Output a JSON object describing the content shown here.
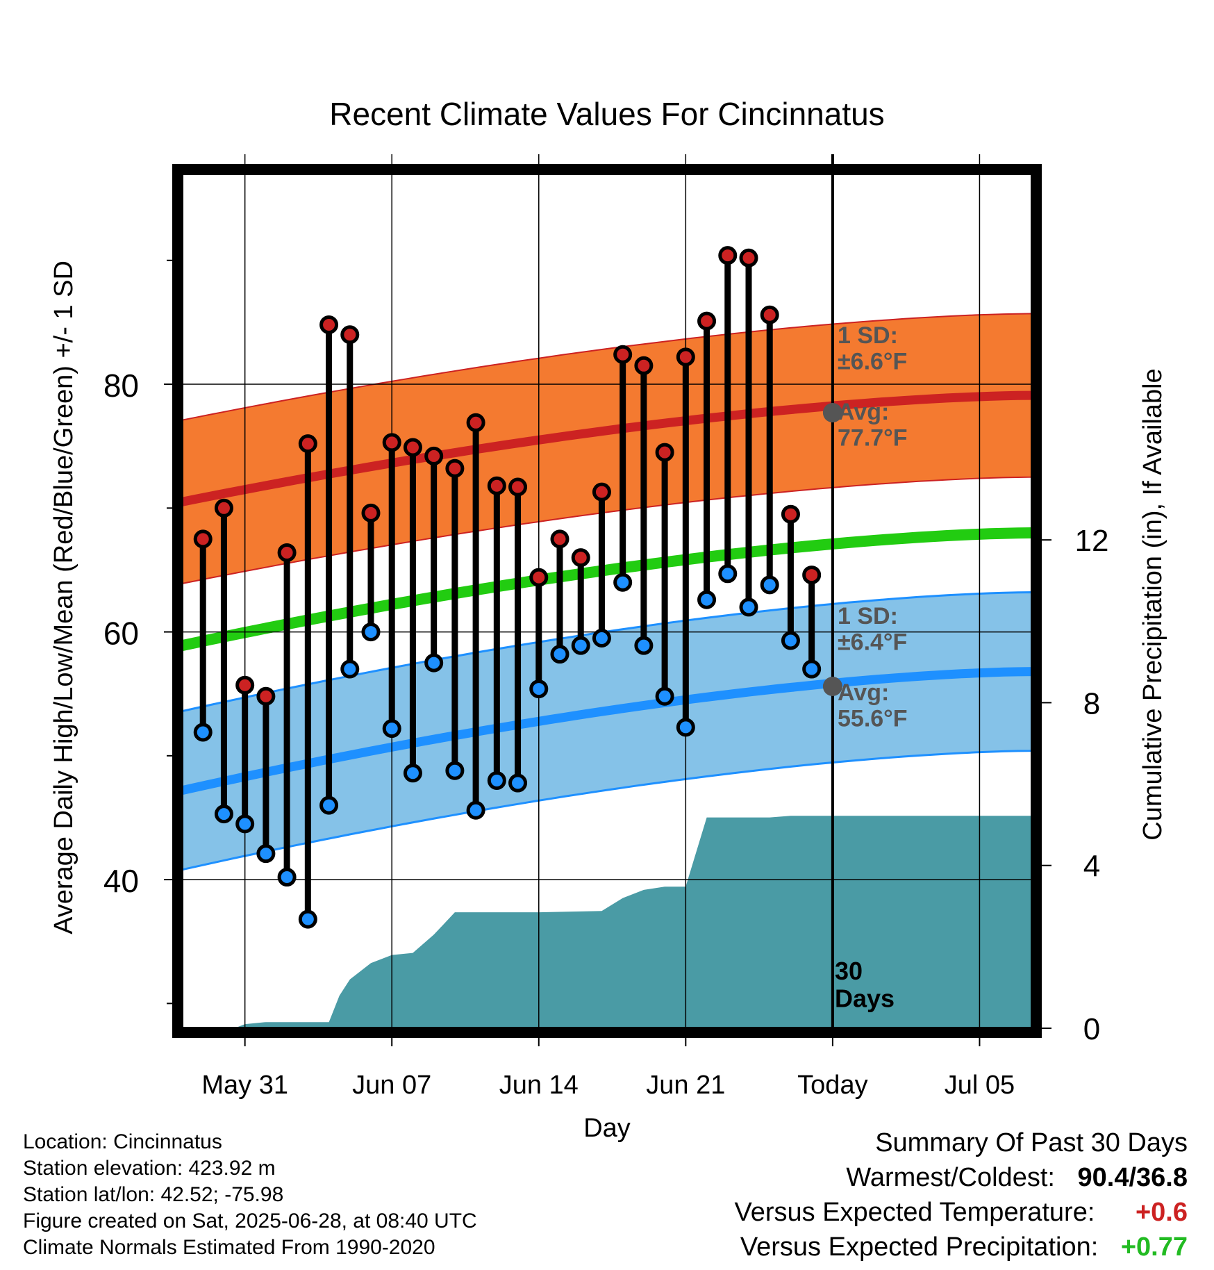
{
  "chart_data": {
    "type": "line",
    "title": "Recent Climate Values For Cincinnatus",
    "xlabel": "Day",
    "ylabel": "Average Daily High/Low/Mean (Red/Blue/Green) +/- 1 SD",
    "y2label": "Cumulative Precipitation (in), If Available",
    "ylim": [
      28,
      97
    ],
    "y2lim": [
      0,
      21
    ],
    "yticks": [
      "40",
      "60",
      "80"
    ],
    "y2ticks": [
      "0",
      "4",
      "8",
      "12"
    ],
    "xticks": [
      {
        "day": 3,
        "label": "May 31"
      },
      {
        "day": 10,
        "label": "Jun 07"
      },
      {
        "day": 17,
        "label": "Jun 14"
      },
      {
        "day": 24,
        "label": "Jun 21"
      },
      {
        "day": 31,
        "label": "Today"
      },
      {
        "day": 38,
        "label": "Jul 05"
      }
    ],
    "xlim": [
      0,
      40.5
    ],
    "today_day": 31,
    "today_label": "30\nDays",
    "normals": {
      "high_avg_start": 70.5,
      "high_avg_end": 79.1,
      "high_sd": 6.6,
      "low_avg_start": 47.2,
      "low_avg_end": 56.8,
      "low_sd": 6.4,
      "mean_avg_start": 58.9,
      "mean_avg_end": 68.0
    },
    "annotations": {
      "high_sd": "1 SD:\n±6.6°F",
      "high_avg": "Avg:\n77.7°F",
      "low_sd": "1 SD:\n±6.4°F",
      "low_avg": "Avg:\n55.6°F",
      "today_high_avg": 77.7,
      "today_low_avg": 55.6
    },
    "series": [
      {
        "name": "High",
        "x": [
          1,
          2,
          3,
          4,
          5,
          6,
          7,
          8,
          9,
          10,
          11,
          12,
          13,
          14,
          15,
          16,
          17,
          18,
          19,
          20,
          21,
          22,
          23,
          24,
          25,
          26,
          27,
          28,
          29,
          30
        ],
        "values": [
          67.5,
          70.0,
          55.7,
          54.8,
          66.4,
          75.2,
          84.8,
          84.0,
          69.6,
          75.3,
          74.9,
          74.2,
          73.2,
          76.9,
          71.8,
          71.7,
          64.4,
          67.5,
          66.0,
          71.3,
          82.4,
          81.5,
          74.5,
          82.2,
          85.1,
          90.4,
          90.2,
          85.6,
          69.5,
          64.6
        ]
      },
      {
        "name": "Low",
        "x": [
          1,
          2,
          3,
          4,
          5,
          6,
          7,
          8,
          9,
          10,
          11,
          12,
          13,
          14,
          15,
          16,
          17,
          18,
          19,
          20,
          21,
          22,
          23,
          24,
          25,
          26,
          27,
          28,
          29,
          30
        ],
        "values": [
          51.9,
          45.3,
          44.5,
          42.1,
          40.2,
          36.8,
          46.0,
          57.0,
          60.0,
          52.2,
          48.6,
          57.5,
          48.8,
          45.6,
          48.0,
          47.8,
          55.4,
          58.2,
          58.9,
          59.5,
          64.0,
          58.9,
          54.8,
          52.3,
          62.6,
          64.7,
          62.0,
          63.8,
          59.3,
          57.0
        ]
      }
    ],
    "precip": {
      "x": [
        2.0,
        2.5,
        3.0,
        4.0,
        5.0,
        6.0,
        7.0,
        7.5,
        8.0,
        9.0,
        10.0,
        11.0,
        12.0,
        13.0,
        14.0,
        15.0,
        16.0,
        17.0,
        18.0,
        19.0,
        20.0,
        21.0,
        22.0,
        23.0,
        24.0,
        25.0,
        26.0,
        27.0,
        28.0,
        29.0,
        30.0,
        31.0,
        40.5
      ],
      "values": [
        0,
        0,
        0.1,
        0.15,
        0.15,
        0.15,
        0.15,
        0.8,
        1.2,
        1.6,
        1.8,
        1.85,
        2.3,
        2.85,
        2.85,
        2.85,
        2.85,
        2.85,
        2.86,
        2.87,
        2.88,
        3.2,
        3.4,
        3.48,
        3.48,
        5.18,
        5.18,
        5.18,
        5.18,
        5.22,
        5.22,
        5.22,
        5.22
      ]
    }
  },
  "info": {
    "location": "Location: Cincinnatus",
    "elevation": "Station elevation: 423.92 m",
    "latlon": "Station lat/lon: 42.52; -75.98",
    "created": "Figure created on Sat, 2025-06-28, at 08:40 UTC",
    "normals": "Climate Normals Estimated From 1990-2020"
  },
  "summary": {
    "heading": "Summary Of Past 30 Days",
    "warmest_label": "Warmest/Coldest:",
    "warmest_value": "90.4/36.8",
    "temp_label": "Versus Expected Temperature:",
    "temp_value": "+0.6",
    "precip_label": "Versus Expected Precipitation:",
    "precip_value": "+0.77"
  },
  "colors": {
    "high_band": "#f47a30",
    "high_line": "#cc2222",
    "low_band": "#85c2e8",
    "low_line": "#1e90ff",
    "mean_line": "#22cc11",
    "precip": "#4a9ba5",
    "high_dot": "#cc2222",
    "low_dot": "#1e90ff",
    "annotation": "#555555",
    "temp_value": "#cc2222",
    "precip_value": "#22bb22"
  }
}
